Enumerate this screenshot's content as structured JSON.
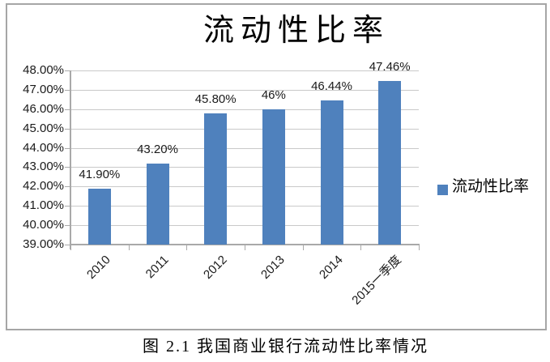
{
  "caption": "图 2.1 我国商业银行流动性比率情况",
  "chart_data": {
    "type": "bar",
    "title": "流动性比率",
    "categories": [
      "2010",
      "2011",
      "2012",
      "2013",
      "2014",
      "2015一季度"
    ],
    "series": [
      {
        "name": "流动性比率",
        "values": [
          41.9,
          43.2,
          45.8,
          46.0,
          46.44,
          47.46
        ]
      }
    ],
    "value_labels": [
      "41.90%",
      "43.20%",
      "45.80%",
      "46%",
      "46.44%",
      "47.46%"
    ],
    "ylim": [
      39,
      48
    ],
    "ytick_step": 1,
    "ytick_labels": [
      "48.00%",
      "47.00%",
      "46.00%",
      "45.00%",
      "44.00%",
      "43.00%",
      "42.00%",
      "41.00%",
      "40.00%",
      "39.00%"
    ],
    "grid": true,
    "legend": {
      "label": "流动性比率",
      "position": "right"
    },
    "colors": {
      "bar": "#4F81BD",
      "gridline": "#C9C9C9",
      "axis": "#A9A9A9",
      "frame_border": "#A6A6A6",
      "text": "#1a1a1a"
    }
  }
}
